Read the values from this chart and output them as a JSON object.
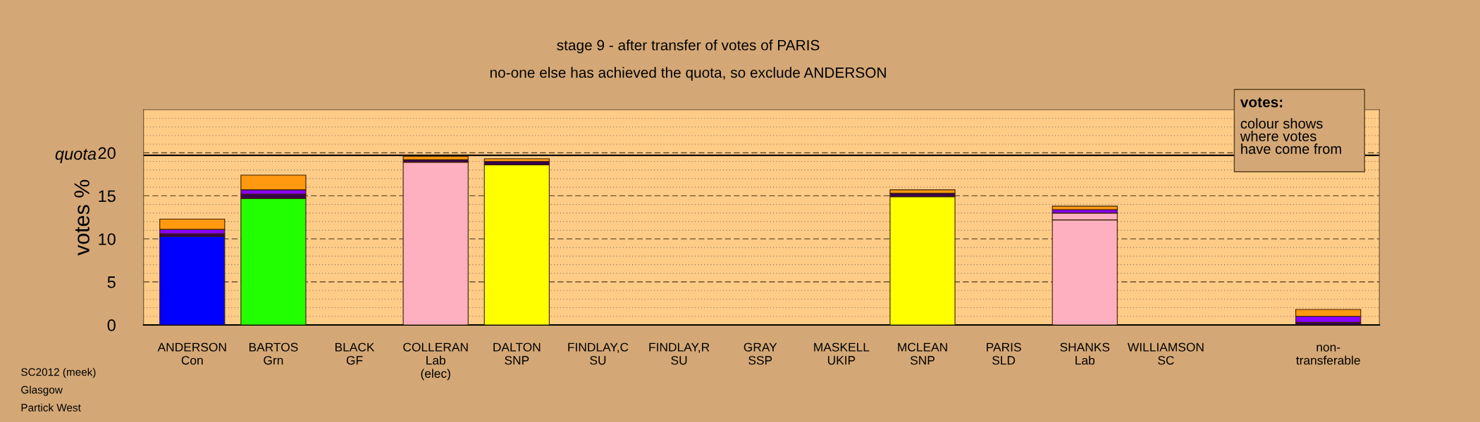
{
  "chart_data": {
    "type": "bar",
    "stacked": true,
    "title": "stage 9 - after transfer of votes of PARIS",
    "subtitle": "no-one else has achieved the quota, so exclude ANDERSON",
    "ylabel": "votes %",
    "categories": [
      "ANDERSON\nCon",
      "BARTOS\nGrn",
      "BLACK\nGF",
      "COLLERAN\nLab\n(elec)",
      "DALTON\nSNP",
      "FINDLAY,C\nSU",
      "FINDLAY,R\nSU",
      "GRAY\nSSP",
      "MASKELL\nUKIP",
      "MCLEAN\nSNP",
      "PARIS\nSLD",
      "SHANKS\nLab",
      "WILLIAMSON\nSC",
      null,
      "non-\ntransferable"
    ],
    "series": [
      {
        "color": "#0000ff",
        "values": [
          10.3,
          0,
          0,
          0,
          0,
          0,
          0,
          0,
          0,
          0,
          0,
          0,
          0,
          0,
          0
        ]
      },
      {
        "color": "#22ff00",
        "values": [
          0,
          14.7,
          0,
          0,
          0,
          0,
          0,
          0,
          0,
          0,
          0,
          0,
          0,
          0,
          0
        ]
      },
      {
        "color": "#ffb0c0",
        "values": [
          0,
          0,
          0,
          18.9,
          0,
          0,
          0,
          0,
          0,
          0,
          0,
          12.2,
          0,
          0,
          0
        ]
      },
      {
        "color": "#ffff00",
        "values": [
          0,
          0,
          0,
          0,
          18.6,
          0,
          0,
          0,
          0,
          14.9,
          0,
          0,
          0,
          0,
          0
        ]
      },
      {
        "color": "#ffb0c0",
        "values": [
          0,
          0,
          0,
          0,
          0,
          0,
          0,
          0,
          0,
          0,
          0,
          0.8,
          0,
          0,
          0
        ]
      },
      {
        "color": "#3a0050",
        "values": [
          0.3,
          0.5,
          0,
          0.3,
          0.4,
          0,
          0,
          0,
          0,
          0.4,
          0,
          0,
          0,
          0,
          0.3
        ]
      },
      {
        "color": "#8800ff",
        "values": [
          0.5,
          0.5,
          0,
          0,
          0,
          0,
          0,
          0,
          0,
          0,
          0,
          0.4,
          0,
          0,
          0.7
        ]
      },
      {
        "color": "#ff9910",
        "values": [
          1.2,
          1.7,
          0,
          0.4,
          0.3,
          0,
          0,
          0,
          0,
          0.4,
          0,
          0.4,
          0,
          0,
          0.8
        ]
      }
    ],
    "ylim": [
      0,
      25
    ],
    "yticks": [
      0,
      {
        "value": 1,
        "label": null
      },
      {
        "value": 2,
        "label": null
      },
      {
        "value": 3,
        "label": null
      },
      {
        "value": 4,
        "label": null
      },
      5,
      {
        "value": 6,
        "label": null
      },
      {
        "value": 7,
        "label": null
      },
      {
        "value": 8,
        "label": null
      },
      {
        "value": 9,
        "label": null
      },
      10,
      {
        "value": 11,
        "label": null
      },
      {
        "value": 12,
        "label": null
      },
      {
        "value": 13,
        "label": null
      },
      {
        "value": 14,
        "label": null
      },
      15,
      {
        "value": 16,
        "label": null
      },
      {
        "value": 17,
        "label": null
      },
      {
        "value": 18,
        "label": null
      },
      {
        "value": 19,
        "label": null
      },
      20,
      {
        "value": 21,
        "label": null
      },
      {
        "value": 22,
        "label": null
      },
      {
        "value": 23,
        "label": null
      },
      {
        "value": 24,
        "label": null
      }
    ],
    "grid": "y",
    "ref_lines": [
      {
        "axis": "y",
        "value": 19.7,
        "label": "quota",
        "color": "#000000",
        "line_style": "solid"
      }
    ],
    "annotations": [
      "SC2012 (meek)\nGlasgow\nPartick West",
      "votes:",
      "colour shows\nwhere votes\nhave come from"
    ]
  }
}
